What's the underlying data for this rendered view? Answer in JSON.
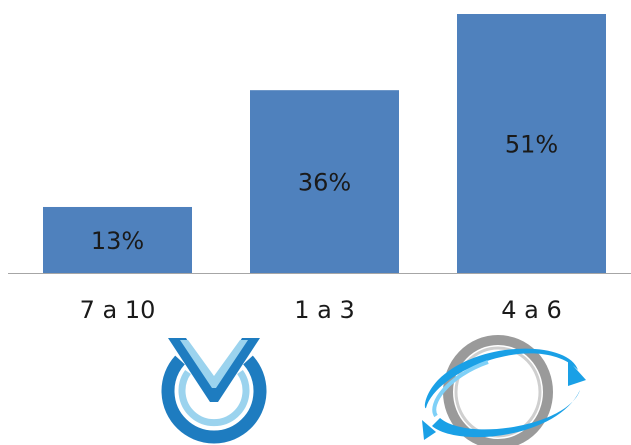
{
  "chart_data": {
    "type": "bar",
    "categories": [
      "7 a 10",
      "1 a 3",
      "4 a 6"
    ],
    "values": [
      13,
      36,
      51
    ],
    "value_labels": [
      "13%",
      "36%",
      "51%"
    ],
    "ylim": [
      0,
      51
    ],
    "grid": false,
    "legend": "none",
    "bar_color": "#4f81bd",
    "axis_color": "#a6a6a6",
    "label_color": "#1a1a1a"
  },
  "logos": {
    "left": {
      "icon": "clock-v-logo-icon",
      "colors": [
        "#1e7cc0",
        "#9bd3ee"
      ]
    },
    "right": {
      "icon": "orbit-globe-logo-icon",
      "colors": [
        "#1aa0e6",
        "#9a9a9a"
      ]
    }
  }
}
